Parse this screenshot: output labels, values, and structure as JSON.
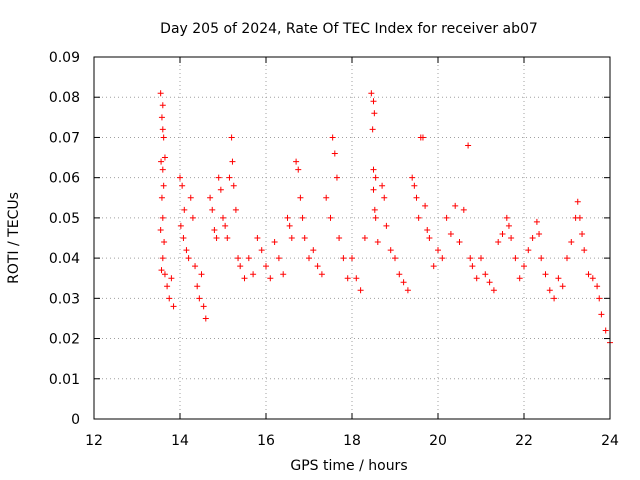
{
  "chart_data": {
    "type": "scatter",
    "title": "Day 205 of 2024, Rate Of TEC Index for receiver ab07",
    "xlabel": "GPS time / hours",
    "ylabel": "ROTI / TECUs",
    "xlim": [
      12,
      24
    ],
    "ylim": [
      0,
      0.09
    ],
    "x_ticks": [
      12,
      14,
      16,
      18,
      20,
      22,
      24
    ],
    "x_tick_labels": [
      "12",
      "14",
      "16",
      "18",
      "20",
      "22",
      "24"
    ],
    "y_ticks": [
      0,
      0.01,
      0.02,
      0.03,
      0.04,
      0.05,
      0.06,
      0.07,
      0.08,
      0.09
    ],
    "y_tick_labels": [
      "0",
      "0.01",
      "0.02",
      "0.03",
      "0.04",
      "0.05",
      "0.06",
      "0.07",
      "0.08",
      "0.09"
    ],
    "grid": true,
    "marker": "plus",
    "color": "#ff0000",
    "series": [
      {
        "name": "ROTI",
        "points": [
          [
            13.55,
            0.081
          ],
          [
            13.6,
            0.078
          ],
          [
            13.58,
            0.075
          ],
          [
            13.6,
            0.072
          ],
          [
            13.62,
            0.07
          ],
          [
            13.56,
            0.064
          ],
          [
            13.6,
            0.062
          ],
          [
            13.65,
            0.065
          ],
          [
            13.62,
            0.058
          ],
          [
            13.58,
            0.055
          ],
          [
            13.6,
            0.05
          ],
          [
            13.55,
            0.047
          ],
          [
            13.63,
            0.044
          ],
          [
            13.6,
            0.04
          ],
          [
            13.57,
            0.037
          ],
          [
            13.65,
            0.036
          ],
          [
            13.7,
            0.033
          ],
          [
            13.75,
            0.03
          ],
          [
            13.8,
            0.035
          ],
          [
            13.85,
            0.028
          ],
          [
            14.0,
            0.06
          ],
          [
            14.05,
            0.058
          ],
          [
            14.1,
            0.052
          ],
          [
            14.02,
            0.048
          ],
          [
            14.08,
            0.045
          ],
          [
            14.15,
            0.042
          ],
          [
            14.2,
            0.04
          ],
          [
            14.25,
            0.055
          ],
          [
            14.3,
            0.05
          ],
          [
            14.35,
            0.038
          ],
          [
            14.4,
            0.033
          ],
          [
            14.45,
            0.03
          ],
          [
            14.5,
            0.036
          ],
          [
            14.55,
            0.028
          ],
          [
            14.6,
            0.025
          ],
          [
            14.7,
            0.055
          ],
          [
            14.75,
            0.052
          ],
          [
            14.8,
            0.047
          ],
          [
            14.85,
            0.045
          ],
          [
            14.9,
            0.06
          ],
          [
            14.95,
            0.057
          ],
          [
            15.0,
            0.05
          ],
          [
            15.05,
            0.048
          ],
          [
            15.1,
            0.045
          ],
          [
            15.15,
            0.06
          ],
          [
            15.2,
            0.07
          ],
          [
            15.22,
            0.064
          ],
          [
            15.25,
            0.058
          ],
          [
            15.3,
            0.052
          ],
          [
            15.35,
            0.04
          ],
          [
            15.4,
            0.038
          ],
          [
            15.5,
            0.035
          ],
          [
            15.6,
            0.04
          ],
          [
            15.7,
            0.036
          ],
          [
            15.8,
            0.045
          ],
          [
            15.9,
            0.042
          ],
          [
            16.0,
            0.038
          ],
          [
            16.1,
            0.035
          ],
          [
            16.2,
            0.044
          ],
          [
            16.3,
            0.04
          ],
          [
            16.4,
            0.036
          ],
          [
            16.5,
            0.05
          ],
          [
            16.55,
            0.048
          ],
          [
            16.6,
            0.045
          ],
          [
            16.7,
            0.064
          ],
          [
            16.75,
            0.062
          ],
          [
            16.8,
            0.055
          ],
          [
            16.85,
            0.05
          ],
          [
            16.9,
            0.045
          ],
          [
            17.0,
            0.04
          ],
          [
            17.1,
            0.042
          ],
          [
            17.2,
            0.038
          ],
          [
            17.3,
            0.036
          ],
          [
            17.4,
            0.055
          ],
          [
            17.5,
            0.05
          ],
          [
            17.55,
            0.07
          ],
          [
            17.6,
            0.066
          ],
          [
            17.65,
            0.06
          ],
          [
            17.7,
            0.045
          ],
          [
            17.8,
            0.04
          ],
          [
            17.9,
            0.035
          ],
          [
            18.0,
            0.04
          ],
          [
            18.1,
            0.035
          ],
          [
            18.2,
            0.032
          ],
          [
            18.3,
            0.045
          ],
          [
            18.45,
            0.081
          ],
          [
            18.5,
            0.079
          ],
          [
            18.52,
            0.076
          ],
          [
            18.48,
            0.072
          ],
          [
            18.5,
            0.062
          ],
          [
            18.55,
            0.06
          ],
          [
            18.5,
            0.057
          ],
          [
            18.53,
            0.052
          ],
          [
            18.55,
            0.05
          ],
          [
            18.6,
            0.044
          ],
          [
            18.7,
            0.058
          ],
          [
            18.75,
            0.055
          ],
          [
            18.8,
            0.048
          ],
          [
            18.9,
            0.042
          ],
          [
            19.0,
            0.04
          ],
          [
            19.1,
            0.036
          ],
          [
            19.2,
            0.034
          ],
          [
            19.3,
            0.032
          ],
          [
            19.4,
            0.06
          ],
          [
            19.45,
            0.058
          ],
          [
            19.5,
            0.055
          ],
          [
            19.55,
            0.05
          ],
          [
            19.6,
            0.07
          ],
          [
            19.65,
            0.07
          ],
          [
            19.7,
            0.053
          ],
          [
            19.75,
            0.047
          ],
          [
            19.8,
            0.045
          ],
          [
            19.9,
            0.038
          ],
          [
            20.0,
            0.042
          ],
          [
            20.1,
            0.04
          ],
          [
            20.2,
            0.05
          ],
          [
            20.3,
            0.046
          ],
          [
            20.4,
            0.053
          ],
          [
            20.5,
            0.044
          ],
          [
            20.6,
            0.052
          ],
          [
            20.7,
            0.068
          ],
          [
            20.75,
            0.04
          ],
          [
            20.8,
            0.038
          ],
          [
            20.9,
            0.035
          ],
          [
            21.0,
            0.04
          ],
          [
            21.1,
            0.036
          ],
          [
            21.2,
            0.034
          ],
          [
            21.3,
            0.032
          ],
          [
            21.4,
            0.044
          ],
          [
            21.5,
            0.046
          ],
          [
            21.6,
            0.05
          ],
          [
            21.65,
            0.048
          ],
          [
            21.7,
            0.045
          ],
          [
            21.8,
            0.04
          ],
          [
            21.9,
            0.035
          ],
          [
            22.0,
            0.038
          ],
          [
            22.1,
            0.042
          ],
          [
            22.2,
            0.045
          ],
          [
            22.3,
            0.049
          ],
          [
            22.35,
            0.046
          ],
          [
            22.4,
            0.04
          ],
          [
            22.5,
            0.036
          ],
          [
            22.6,
            0.032
          ],
          [
            22.7,
            0.03
          ],
          [
            22.8,
            0.035
          ],
          [
            22.9,
            0.033
          ],
          [
            23.0,
            0.04
          ],
          [
            23.1,
            0.044
          ],
          [
            23.2,
            0.05
          ],
          [
            23.25,
            0.054
          ],
          [
            23.3,
            0.05
          ],
          [
            23.35,
            0.046
          ],
          [
            23.4,
            0.042
          ],
          [
            23.5,
            0.036
          ],
          [
            23.6,
            0.035
          ],
          [
            23.7,
            0.033
          ],
          [
            23.75,
            0.03
          ],
          [
            23.8,
            0.026
          ],
          [
            23.9,
            0.022
          ],
          [
            24.0,
            0.019
          ]
        ]
      }
    ]
  }
}
